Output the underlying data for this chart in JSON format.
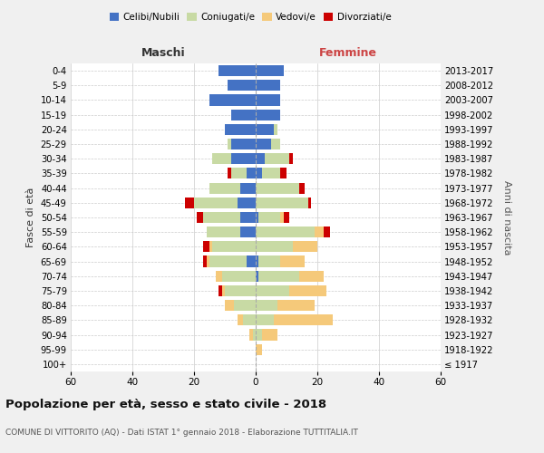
{
  "age_groups": [
    "100+",
    "95-99",
    "90-94",
    "85-89",
    "80-84",
    "75-79",
    "70-74",
    "65-69",
    "60-64",
    "55-59",
    "50-54",
    "45-49",
    "40-44",
    "35-39",
    "30-34",
    "25-29",
    "20-24",
    "15-19",
    "10-14",
    "5-9",
    "0-4"
  ],
  "birth_years": [
    "≤ 1917",
    "1918-1922",
    "1923-1927",
    "1928-1932",
    "1933-1937",
    "1938-1942",
    "1943-1947",
    "1948-1952",
    "1953-1957",
    "1958-1962",
    "1963-1967",
    "1968-1972",
    "1973-1977",
    "1978-1982",
    "1983-1987",
    "1988-1992",
    "1993-1997",
    "1998-2002",
    "2003-2007",
    "2008-2012",
    "2013-2017"
  ],
  "male": {
    "celibi": [
      0,
      0,
      0,
      0,
      0,
      0,
      0,
      3,
      0,
      5,
      5,
      6,
      5,
      3,
      8,
      8,
      10,
      8,
      15,
      9,
      12
    ],
    "coniugati": [
      0,
      0,
      1,
      4,
      7,
      10,
      11,
      12,
      14,
      11,
      12,
      14,
      10,
      5,
      6,
      1,
      0,
      0,
      0,
      0,
      0
    ],
    "vedovi": [
      0,
      0,
      1,
      2,
      3,
      1,
      2,
      1,
      1,
      0,
      0,
      0,
      0,
      0,
      0,
      0,
      0,
      0,
      0,
      0,
      0
    ],
    "divorziati": [
      0,
      0,
      0,
      0,
      0,
      1,
      0,
      1,
      2,
      0,
      2,
      3,
      0,
      1,
      0,
      0,
      0,
      0,
      0,
      0,
      0
    ]
  },
  "female": {
    "nubili": [
      0,
      0,
      0,
      0,
      0,
      0,
      1,
      1,
      0,
      0,
      1,
      0,
      0,
      2,
      3,
      5,
      6,
      8,
      8,
      8,
      9
    ],
    "coniugate": [
      0,
      0,
      2,
      6,
      7,
      11,
      13,
      7,
      12,
      19,
      7,
      17,
      14,
      6,
      8,
      3,
      1,
      0,
      0,
      0,
      0
    ],
    "vedove": [
      0,
      2,
      5,
      19,
      12,
      12,
      8,
      8,
      8,
      3,
      1,
      0,
      0,
      0,
      0,
      0,
      0,
      0,
      0,
      0,
      0
    ],
    "divorziate": [
      0,
      0,
      0,
      0,
      0,
      0,
      0,
      0,
      0,
      2,
      2,
      1,
      2,
      2,
      1,
      0,
      0,
      0,
      0,
      0,
      0
    ]
  },
  "colors": {
    "celibi": "#4472c4",
    "coniugati": "#c8daa4",
    "vedovi": "#f5c97a",
    "divorziati": "#cc0000"
  },
  "xlim": 60,
  "title": "Popolazione per età, sesso e stato civile - 2018",
  "subtitle": "COMUNE DI VITTORITO (AQ) - Dati ISTAT 1° gennaio 2018 - Elaborazione TUTTITALIA.IT",
  "ylabel_left": "Fasce di età",
  "ylabel_right": "Anni di nascita",
  "xlabel_left": "Maschi",
  "xlabel_right": "Femmine",
  "bg_color": "#f0f0f0",
  "plot_bg": "#ffffff"
}
